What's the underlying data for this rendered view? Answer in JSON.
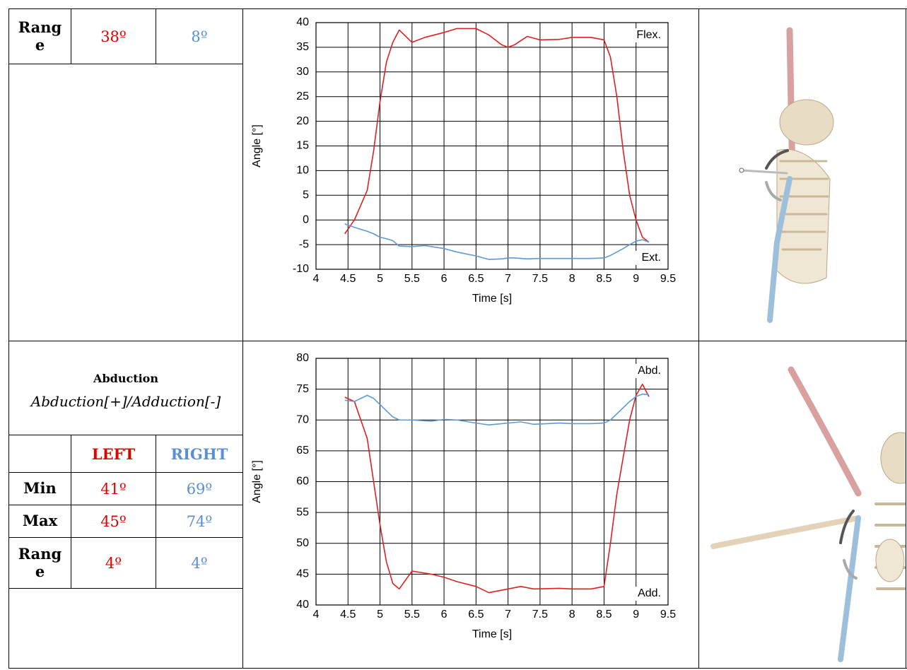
{
  "top_table": {
    "rows": [
      [
        "Range",
        "38º",
        "8º"
      ]
    ]
  },
  "abduction": {
    "title": "Abduction",
    "subtitle": "Abduction[+]/Adduction[-]",
    "header": [
      "LEFT",
      "RIGHT"
    ],
    "rows": [
      [
        "Min",
        "41º",
        "69º"
      ],
      [
        "Max",
        "45º",
        "74º"
      ],
      [
        "Range",
        "4º",
        "4º"
      ]
    ]
  },
  "chart_data": [
    {
      "type": "line",
      "y_label": "Angle [°]",
      "x_label": "Time [s]",
      "annotations": [
        "Flex.",
        "Ext."
      ],
      "xlim": [
        4,
        9.5
      ],
      "xticks": [
        4,
        4.5,
        5,
        5.5,
        6,
        6.5,
        7,
        7.5,
        8,
        8.5,
        9,
        9.5
      ],
      "ylim": [
        -10,
        40
      ],
      "yticks": [
        -10,
        -5,
        0,
        5,
        10,
        15,
        20,
        25,
        30,
        35,
        40
      ],
      "grid": true,
      "x": [
        4.45,
        4.6,
        4.8,
        4.9,
        5.0,
        5.1,
        5.2,
        5.3,
        5.5,
        5.7,
        6.0,
        6.2,
        6.5,
        6.7,
        6.9,
        7.0,
        7.1,
        7.3,
        7.5,
        7.8,
        8.0,
        8.3,
        8.5,
        8.6,
        8.7,
        8.8,
        8.9,
        9.0,
        9.1,
        9.2
      ],
      "series": [
        {
          "color": "#e02020",
          "values": [
            -2.8,
            0,
            6,
            14,
            24,
            32,
            36,
            38.5,
            36,
            37,
            38,
            38.8,
            38.8,
            37.5,
            35.5,
            35,
            35.5,
            37.2,
            36.5,
            36.6,
            37,
            37,
            36.5,
            33,
            25,
            14,
            5,
            0,
            -3.5,
            -4.5
          ]
        },
        {
          "color": "#5b9bd5",
          "values": [
            -0.8,
            -1.5,
            -2.3,
            -2.8,
            -3.5,
            -3.8,
            -4.2,
            -5.3,
            -5.4,
            -5.2,
            -5.8,
            -6.5,
            -7.3,
            -8.0,
            -7.9,
            -7.7,
            -7.7,
            -7.9,
            -7.8,
            -7.8,
            -7.8,
            -7.8,
            -7.7,
            -7.2,
            -6.5,
            -5.8,
            -5.0,
            -4.3,
            -4.0,
            -4.5
          ]
        }
      ]
    },
    {
      "type": "line",
      "y_label": "Angle [°]",
      "x_label": "Time [s]",
      "annotations": [
        "Abd.",
        "Add."
      ],
      "xlim": [
        4,
        9.5
      ],
      "xticks": [
        4,
        4.5,
        5,
        5.5,
        6,
        6.5,
        7,
        7.5,
        8,
        8.5,
        9,
        9.5
      ],
      "ylim": [
        40,
        80
      ],
      "yticks": [
        40,
        45,
        50,
        55,
        60,
        65,
        70,
        75,
        80
      ],
      "grid": true,
      "x": [
        4.45,
        4.6,
        4.8,
        4.9,
        5.0,
        5.1,
        5.2,
        5.3,
        5.5,
        5.8,
        6.0,
        6.2,
        6.5,
        6.7,
        7.0,
        7.2,
        7.4,
        7.8,
        8.0,
        8.3,
        8.5,
        8.6,
        8.7,
        8.8,
        8.9,
        9.0,
        9.1,
        9.2
      ],
      "series": [
        {
          "color": "#e02020",
          "values": [
            73.7,
            73,
            67,
            60,
            53,
            47,
            43.5,
            42.6,
            45.5,
            45,
            44.5,
            43.8,
            43,
            42,
            42.6,
            43,
            42.6,
            42.7,
            42.6,
            42.6,
            43,
            50,
            58,
            64,
            70,
            74,
            75.8,
            73.8
          ]
        },
        {
          "color": "#5b9bd5",
          "values": [
            73.2,
            73,
            74,
            73.5,
            72.5,
            71.5,
            70.5,
            70,
            70,
            69.8,
            70.1,
            70,
            69.5,
            69.2,
            69.5,
            69.7,
            69.3,
            69.5,
            69.4,
            69.4,
            69.5,
            70,
            71,
            72,
            73,
            73.8,
            74.2,
            74.1
          ]
        }
      ]
    }
  ]
}
